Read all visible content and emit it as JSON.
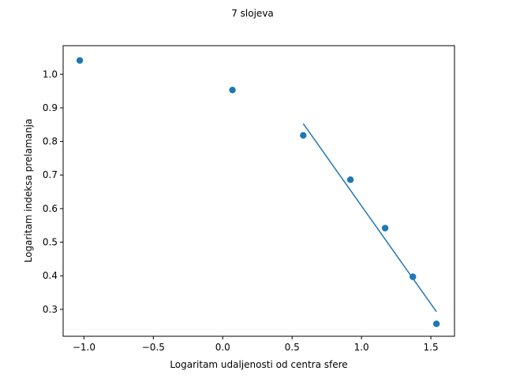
{
  "chart_data": {
    "type": "scatter",
    "title": "7 slojeva",
    "xlabel": "Logaritam udaljenosti od centra sfere",
    "ylabel": "Logaritam indeksa prelamanja",
    "xlim": [
      -1.15,
      1.67
    ],
    "ylim": [
      0.22,
      1.085
    ],
    "x_ticks": [
      -1.0,
      -0.5,
      0.0,
      0.5,
      1.0,
      1.5
    ],
    "x_tick_labels": [
      "−1.0",
      "−0.5",
      "0.0",
      "0.5",
      "1.0",
      "1.5"
    ],
    "y_ticks": [
      0.3,
      0.4,
      0.5,
      0.6,
      0.7,
      0.8,
      0.9,
      1.0
    ],
    "y_tick_labels": [
      "0.3",
      "0.4",
      "0.5",
      "0.6",
      "0.7",
      "0.8",
      "0.9",
      "1.0"
    ],
    "grid": false,
    "color": "#1f77b4",
    "points": [
      {
        "x": -1.03,
        "y": 1.041
      },
      {
        "x": 0.07,
        "y": 0.953
      },
      {
        "x": 0.58,
        "y": 0.818
      },
      {
        "x": 0.92,
        "y": 0.686
      },
      {
        "x": 1.17,
        "y": 0.542
      },
      {
        "x": 1.37,
        "y": 0.397
      },
      {
        "x": 1.54,
        "y": 0.257
      }
    ],
    "fit_line": {
      "x": [
        0.58,
        1.54
      ],
      "y": [
        0.853,
        0.293
      ]
    }
  }
}
